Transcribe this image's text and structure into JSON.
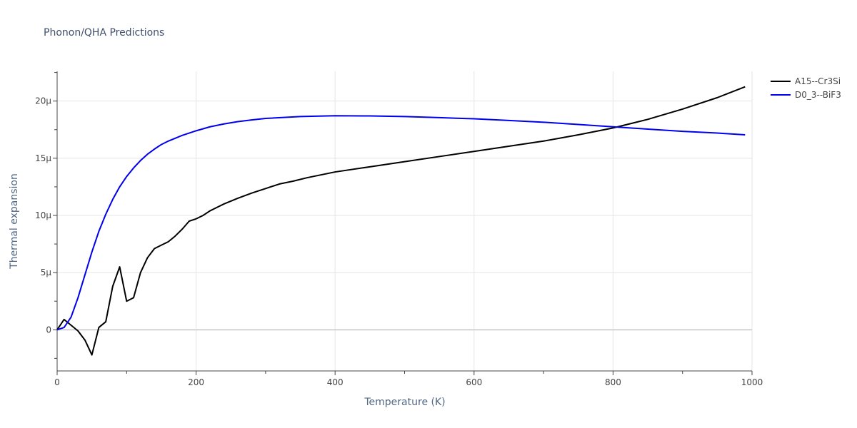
{
  "chart_data": {
    "type": "line",
    "title": "Phonon/QHA Predictions",
    "xlabel": "Temperature (K)",
    "ylabel": "Thermal expansion",
    "xlim": [
      0,
      1000
    ],
    "ylim": [
      -3.6,
      22.6
    ],
    "x_ticks": [
      0,
      200,
      400,
      600,
      800,
      1000
    ],
    "x_tick_labels": [
      "0",
      "200",
      "400",
      "600",
      "800",
      "1000"
    ],
    "y_ticks": [
      0,
      5,
      10,
      15,
      20
    ],
    "y_tick_labels": [
      "0",
      "5μ",
      "10μ",
      "15μ",
      "20μ"
    ],
    "grid": true,
    "legend_position": "top-right",
    "series": [
      {
        "name": "A15--Cr3Si",
        "color": "#000000",
        "x": [
          0,
          10,
          20,
          30,
          40,
          50,
          60,
          70,
          80,
          90,
          100,
          110,
          120,
          130,
          140,
          150,
          160,
          170,
          180,
          190,
          200,
          210,
          220,
          230,
          240,
          260,
          280,
          300,
          320,
          340,
          360,
          380,
          400,
          450,
          500,
          550,
          600,
          650,
          700,
          750,
          800,
          850,
          900,
          950,
          990
        ],
        "y": [
          0,
          0.9,
          0.4,
          -0.1,
          -0.9,
          -2.2,
          0.2,
          0.7,
          3.8,
          5.5,
          2.5,
          2.8,
          5.0,
          6.3,
          7.1,
          7.4,
          7.7,
          8.2,
          8.8,
          9.5,
          9.7,
          10.0,
          10.4,
          10.7,
          11.0,
          11.5,
          11.95,
          12.35,
          12.75,
          13.0,
          13.3,
          13.55,
          13.8,
          14.25,
          14.7,
          15.15,
          15.6,
          16.05,
          16.5,
          17.05,
          17.65,
          18.4,
          19.3,
          20.3,
          21.25
        ]
      },
      {
        "name": "D0_3--BiF3",
        "color": "#0000ee",
        "x": [
          0,
          10,
          20,
          30,
          40,
          50,
          60,
          70,
          80,
          90,
          100,
          110,
          120,
          130,
          140,
          150,
          160,
          170,
          180,
          190,
          200,
          220,
          240,
          260,
          280,
          300,
          350,
          400,
          450,
          500,
          550,
          600,
          650,
          700,
          750,
          800,
          850,
          900,
          950,
          990
        ],
        "y": [
          0,
          0.2,
          1.1,
          2.8,
          4.8,
          6.8,
          8.6,
          10.1,
          11.4,
          12.5,
          13.4,
          14.15,
          14.8,
          15.35,
          15.8,
          16.2,
          16.5,
          16.75,
          17.0,
          17.2,
          17.4,
          17.75,
          18.0,
          18.2,
          18.35,
          18.48,
          18.65,
          18.72,
          18.7,
          18.65,
          18.55,
          18.45,
          18.3,
          18.15,
          17.95,
          17.75,
          17.55,
          17.35,
          17.2,
          17.05
        ]
      }
    ]
  }
}
